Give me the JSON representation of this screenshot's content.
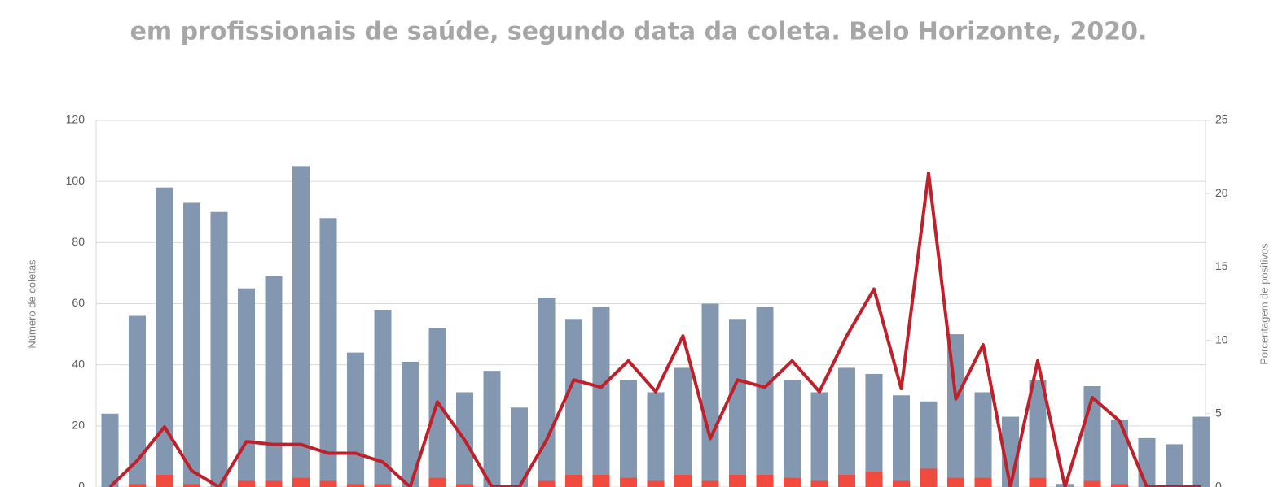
{
  "chart_data": {
    "type": "bar-line",
    "title": "em profissionais de saúde, segundo data da coleta. Belo Horizonte, 2020.",
    "y_label": "Número de coletas",
    "y2_label": "Porcentagem de positivos",
    "categories": [
      null,
      null,
      null,
      null,
      null,
      null,
      null,
      null,
      null,
      null,
      null,
      null,
      null,
      null,
      null,
      null,
      null,
      null,
      null,
      null,
      null,
      null,
      null,
      null,
      null,
      null,
      null,
      null,
      null,
      null,
      null,
      null,
      null,
      null,
      null,
      null,
      null,
      null,
      null,
      null,
      null
    ],
    "series": [
      {
        "type": "bar",
        "color": "#8497b0",
        "values": [
          24,
          56,
          98,
          93,
          90,
          65,
          69,
          105,
          88,
          44,
          58,
          41,
          52,
          31,
          38,
          26,
          62,
          55,
          59,
          35,
          31,
          39,
          60,
          55,
          59,
          35,
          31,
          39,
          37,
          30,
          28,
          50,
          31,
          23,
          35,
          1,
          33,
          22,
          16,
          14,
          23
        ]
      },
      {
        "type": "bar",
        "color": "#f04b3e",
        "values": [
          0,
          1,
          4,
          1,
          0,
          2,
          2,
          3,
          2,
          1,
          1,
          0,
          3,
          1,
          0,
          0,
          2,
          4,
          4,
          3,
          2,
          4,
          2,
          4,
          4,
          3,
          2,
          4,
          5,
          2,
          6,
          3,
          3,
          0,
          3,
          0,
          2,
          1,
          0,
          0,
          0
        ]
      },
      {
        "type": "line",
        "axis": "y2",
        "color": "#c0202a",
        "values": [
          0,
          1.8,
          4.1,
          1.1,
          0,
          3.1,
          2.9,
          2.9,
          2.3,
          2.3,
          1.7,
          0,
          5.8,
          3.2,
          0,
          0,
          3.2,
          7.3,
          6.8,
          8.6,
          6.5,
          10.3,
          3.3,
          7.3,
          6.8,
          8.6,
          6.5,
          10.3,
          13.5,
          6.7,
          21.4,
          6.0,
          9.7,
          0,
          8.6,
          0,
          6.1,
          4.5,
          0,
          0,
          0
        ]
      }
    ],
    "ylim": [
      0,
      120
    ],
    "yticks": [
      0,
      20,
      40,
      60,
      80,
      100,
      120
    ],
    "y2lim": [
      0,
      25
    ],
    "y2ticks": [
      0,
      5,
      10,
      15,
      20,
      25
    ],
    "grid": true
  }
}
